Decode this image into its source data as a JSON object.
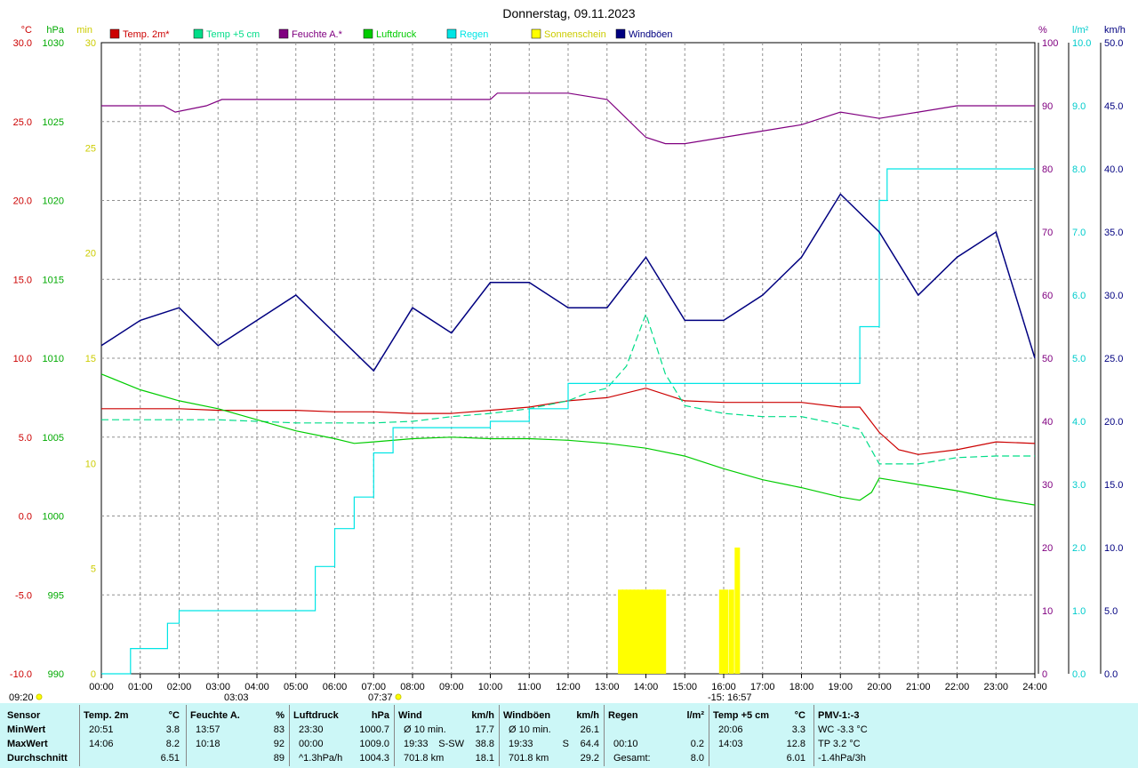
{
  "title": "Donnerstag, 09.11.2023",
  "legend": [
    {
      "label": "Temp. 2m*",
      "color": "#cc0000"
    },
    {
      "label": "Temp +5 cm",
      "color": "#00dd88"
    },
    {
      "label": "Feuchte A.*",
      "color": "#800080"
    },
    {
      "label": "Luftdruck",
      "color": "#00cc00"
    },
    {
      "label": "Regen",
      "color": "#00e5e5"
    },
    {
      "label": "Sonnenschein",
      "color": "#ffff00"
    },
    {
      "label": "Windböen",
      "color": "#000080"
    }
  ],
  "axes": {
    "temp": {
      "unit": "°C",
      "ticks": [
        "30.0",
        "25.0",
        "20.0",
        "15.0",
        "10.0",
        "5.0",
        "0.0",
        "-5.0",
        "-10.0"
      ],
      "color": "#cc0000"
    },
    "pressure": {
      "unit": "hPa",
      "ticks": [
        "1030",
        "1025",
        "1020",
        "1015",
        "1010",
        "1005",
        "1000",
        "995",
        "990"
      ],
      "color": "#00aa00"
    },
    "sun": {
      "unit": "min",
      "ticks": [
        "30",
        "25",
        "20",
        "15",
        "10",
        "5",
        "0"
      ],
      "color": "#cccc00"
    },
    "humidity": {
      "unit": "%",
      "ticks": [
        "100",
        "90",
        "80",
        "70",
        "60",
        "50",
        "40",
        "30",
        "20",
        "10",
        "0"
      ],
      "color": "#800080"
    },
    "rain": {
      "unit": "l/m²",
      "ticks": [
        "10.0",
        "9.0",
        "8.0",
        "7.0",
        "6.0",
        "5.0",
        "4.0",
        "3.0",
        "2.0",
        "1.0",
        "0.0"
      ],
      "color": "#00cccc"
    },
    "wind": {
      "unit": "km/h",
      "ticks": [
        "50.0",
        "45.0",
        "40.0",
        "35.0",
        "30.0",
        "25.0",
        "20.0",
        "15.0",
        "10.0",
        "5.0",
        "0.0"
      ],
      "color": "#000080"
    },
    "x_ticks": [
      "00:00",
      "01:00",
      "02:00",
      "03:00",
      "04:00",
      "05:00",
      "06:00",
      "07:00",
      "08:00",
      "09:00",
      "10:00",
      "11:00",
      "12:00",
      "13:00",
      "14:00",
      "15:00",
      "16:00",
      "17:00",
      "18:00",
      "19:00",
      "20:00",
      "21:00",
      "22:00",
      "23:00",
      "24:00"
    ]
  },
  "markers": {
    "sunrise_time": "09:20",
    "m1": "03:03",
    "m2": "07:37",
    "m3": "-15: 16:57"
  },
  "chart_data": {
    "type": "line",
    "x_unit": "hour of day",
    "xlim": [
      0,
      24
    ],
    "series": [
      {
        "name": "Temp. 2m*",
        "axis": "temp",
        "ylim": [
          -10,
          30
        ],
        "x": [
          0,
          1,
          2,
          3,
          5,
          6,
          7,
          8,
          9,
          10,
          11,
          12,
          13,
          14,
          15,
          16,
          17,
          18,
          19,
          19.5,
          20,
          20.5,
          21,
          22,
          23,
          24
        ],
        "y": [
          6.8,
          6.8,
          6.8,
          6.7,
          6.7,
          6.6,
          6.6,
          6.5,
          6.5,
          6.7,
          6.9,
          7.3,
          7.5,
          8.1,
          7.3,
          7.2,
          7.2,
          7.2,
          6.9,
          6.9,
          5.3,
          4.2,
          3.9,
          4.2,
          4.7,
          4.6
        ]
      },
      {
        "name": "Temp +5 cm",
        "axis": "temp",
        "ylim": [
          -10,
          30
        ],
        "x": [
          0,
          1,
          2,
          3,
          4,
          5,
          6,
          7,
          8,
          9,
          10,
          11,
          12,
          12.5,
          13,
          13.5,
          14,
          14.5,
          15,
          16,
          17,
          18,
          19,
          19.5,
          20,
          21,
          22,
          23,
          24
        ],
        "y": [
          6.1,
          6.1,
          6.1,
          6.1,
          6.0,
          5.9,
          5.9,
          5.9,
          6.0,
          6.3,
          6.5,
          6.8,
          7.3,
          7.8,
          8.1,
          9.5,
          12.8,
          9.0,
          7.0,
          6.5,
          6.3,
          6.3,
          5.8,
          5.5,
          3.3,
          3.3,
          3.7,
          3.8,
          3.8
        ]
      },
      {
        "name": "Feuchte A.*",
        "axis": "humidity",
        "ylim": [
          0,
          100
        ],
        "x": [
          0,
          1,
          1.6,
          1.9,
          2.7,
          3.1,
          5,
          7,
          9,
          10,
          10.18,
          11,
          12,
          13,
          14,
          14.5,
          15,
          16,
          17,
          18,
          19,
          20,
          21,
          22,
          23,
          24
        ],
        "y": [
          90,
          90,
          90,
          89,
          90,
          91,
          91,
          91,
          91,
          91,
          92,
          92,
          92,
          91,
          85,
          84,
          84,
          85,
          86,
          87,
          89,
          88,
          89,
          90,
          90,
          90
        ]
      },
      {
        "name": "Luftdruck",
        "axis": "pressure",
        "ylim": [
          990,
          1030
        ],
        "x": [
          0,
          1,
          2,
          3,
          4,
          5,
          6,
          6.5,
          7,
          8,
          9,
          10,
          11,
          12,
          13,
          14,
          15,
          16,
          17,
          18,
          19,
          19.5,
          19.8,
          20,
          21,
          22,
          23,
          24
        ],
        "y": [
          1009.0,
          1008.0,
          1007.3,
          1006.8,
          1006.1,
          1005.4,
          1004.9,
          1004.6,
          1004.7,
          1004.9,
          1005.0,
          1004.9,
          1004.9,
          1004.8,
          1004.6,
          1004.3,
          1003.8,
          1003.0,
          1002.3,
          1001.8,
          1001.2,
          1001.0,
          1001.5,
          1002.4,
          1002.0,
          1001.6,
          1001.1,
          1000.7
        ]
      },
      {
        "name": "Regen",
        "axis": "rain",
        "ylim": [
          0,
          10
        ],
        "step": true,
        "x": [
          0,
          0.75,
          1.7,
          2.0,
          3.0,
          4.0,
          5.0,
          5.5,
          6.0,
          6.5,
          7.0,
          7.5,
          8.0,
          9.0,
          10.0,
          11.0,
          12.0,
          13.0,
          14.0,
          15.0,
          16.0,
          17.0,
          18.0,
          19.0,
          19.5,
          20.0,
          20.2,
          21.0,
          24.0
        ],
        "y": [
          0,
          0.4,
          0.8,
          1.0,
          1.0,
          1.0,
          1.0,
          1.7,
          2.3,
          2.8,
          3.5,
          3.9,
          3.9,
          3.9,
          4.0,
          4.2,
          4.6,
          4.6,
          4.6,
          4.6,
          4.6,
          4.6,
          4.6,
          4.6,
          5.5,
          7.5,
          8.0,
          8.0,
          8.0
        ]
      },
      {
        "name": "Sonnenschein",
        "axis": "sun",
        "ylim": [
          0,
          30
        ],
        "bars": true,
        "x": [
          13.35,
          13.45,
          13.55,
          13.65,
          13.75,
          13.85,
          13.95,
          14.05,
          14.15,
          14.25,
          14.35,
          14.45,
          15.95,
          16.05,
          16.2,
          16.35
        ],
        "y": [
          4,
          4,
          4,
          4,
          4,
          4,
          4,
          4,
          4,
          4,
          4,
          4,
          4,
          4,
          4,
          6
        ]
      },
      {
        "name": "Windböen",
        "axis": "wind",
        "ylim": [
          0,
          50
        ],
        "x": [
          0,
          1,
          2,
          3,
          4,
          5,
          6,
          7,
          8,
          9,
          10,
          11,
          12,
          13,
          14,
          15,
          16,
          17,
          18,
          19,
          20,
          21,
          22,
          23,
          24
        ],
        "y": [
          26,
          28,
          29,
          26,
          28,
          30,
          27,
          24,
          29,
          27,
          31,
          31,
          29,
          29,
          33,
          28,
          28,
          30,
          33,
          38,
          35,
          30,
          33,
          35,
          25
        ]
      }
    ]
  },
  "stats": {
    "cols": [
      {
        "header": "Sensor",
        "rows": [
          "MinWert",
          "MaxWert",
          "Durchschnitt"
        ]
      },
      {
        "header": "Temp. 2m",
        "unit": "°C",
        "rows": [
          [
            "20:51",
            "3.8"
          ],
          [
            "14:06",
            "8.2"
          ],
          [
            "",
            "6.51"
          ]
        ]
      },
      {
        "header": "Feuchte A.",
        "unit": "%",
        "rows": [
          [
            "13:57",
            "83"
          ],
          [
            "10:18",
            "92"
          ],
          [
            "",
            "89"
          ]
        ]
      },
      {
        "header": "Luftdruck",
        "unit": "hPa",
        "rows": [
          [
            "23:30",
            "1000.7"
          ],
          [
            "00:00",
            "1009.0"
          ],
          [
            "^1.3hPa/h",
            "1004.3"
          ]
        ]
      },
      {
        "header": "Wind",
        "unit": "km/h",
        "rows": [
          [
            "Ø 10 min.",
            "",
            "17.7"
          ],
          [
            "19:33",
            "S-SW",
            "38.8"
          ],
          [
            "701.8 km",
            "",
            "18.1"
          ]
        ]
      },
      {
        "header": "Windböen",
        "unit": "km/h",
        "rows": [
          [
            "Ø 10 min.",
            "",
            "26.1"
          ],
          [
            "19:33",
            "S",
            "64.4"
          ],
          [
            "701.8 km",
            "",
            "29.2"
          ]
        ]
      },
      {
        "header": "Regen",
        "unit": "l/m²",
        "rows": [
          [
            "",
            ""
          ],
          [
            "00:10",
            "0.2"
          ],
          [
            "Gesamt:",
            "8.0"
          ]
        ]
      },
      {
        "header": "Temp +5 cm",
        "unit": "°C",
        "rows": [
          [
            "20:06",
            "3.3"
          ],
          [
            "14:03",
            "12.8"
          ],
          [
            "",
            "6.01"
          ]
        ]
      },
      {
        "header": "PMV-1:-3",
        "rows": [
          "WC -3.3 °C",
          "TP 3.2 °C",
          "-1.4hPa/3h"
        ]
      }
    ]
  }
}
